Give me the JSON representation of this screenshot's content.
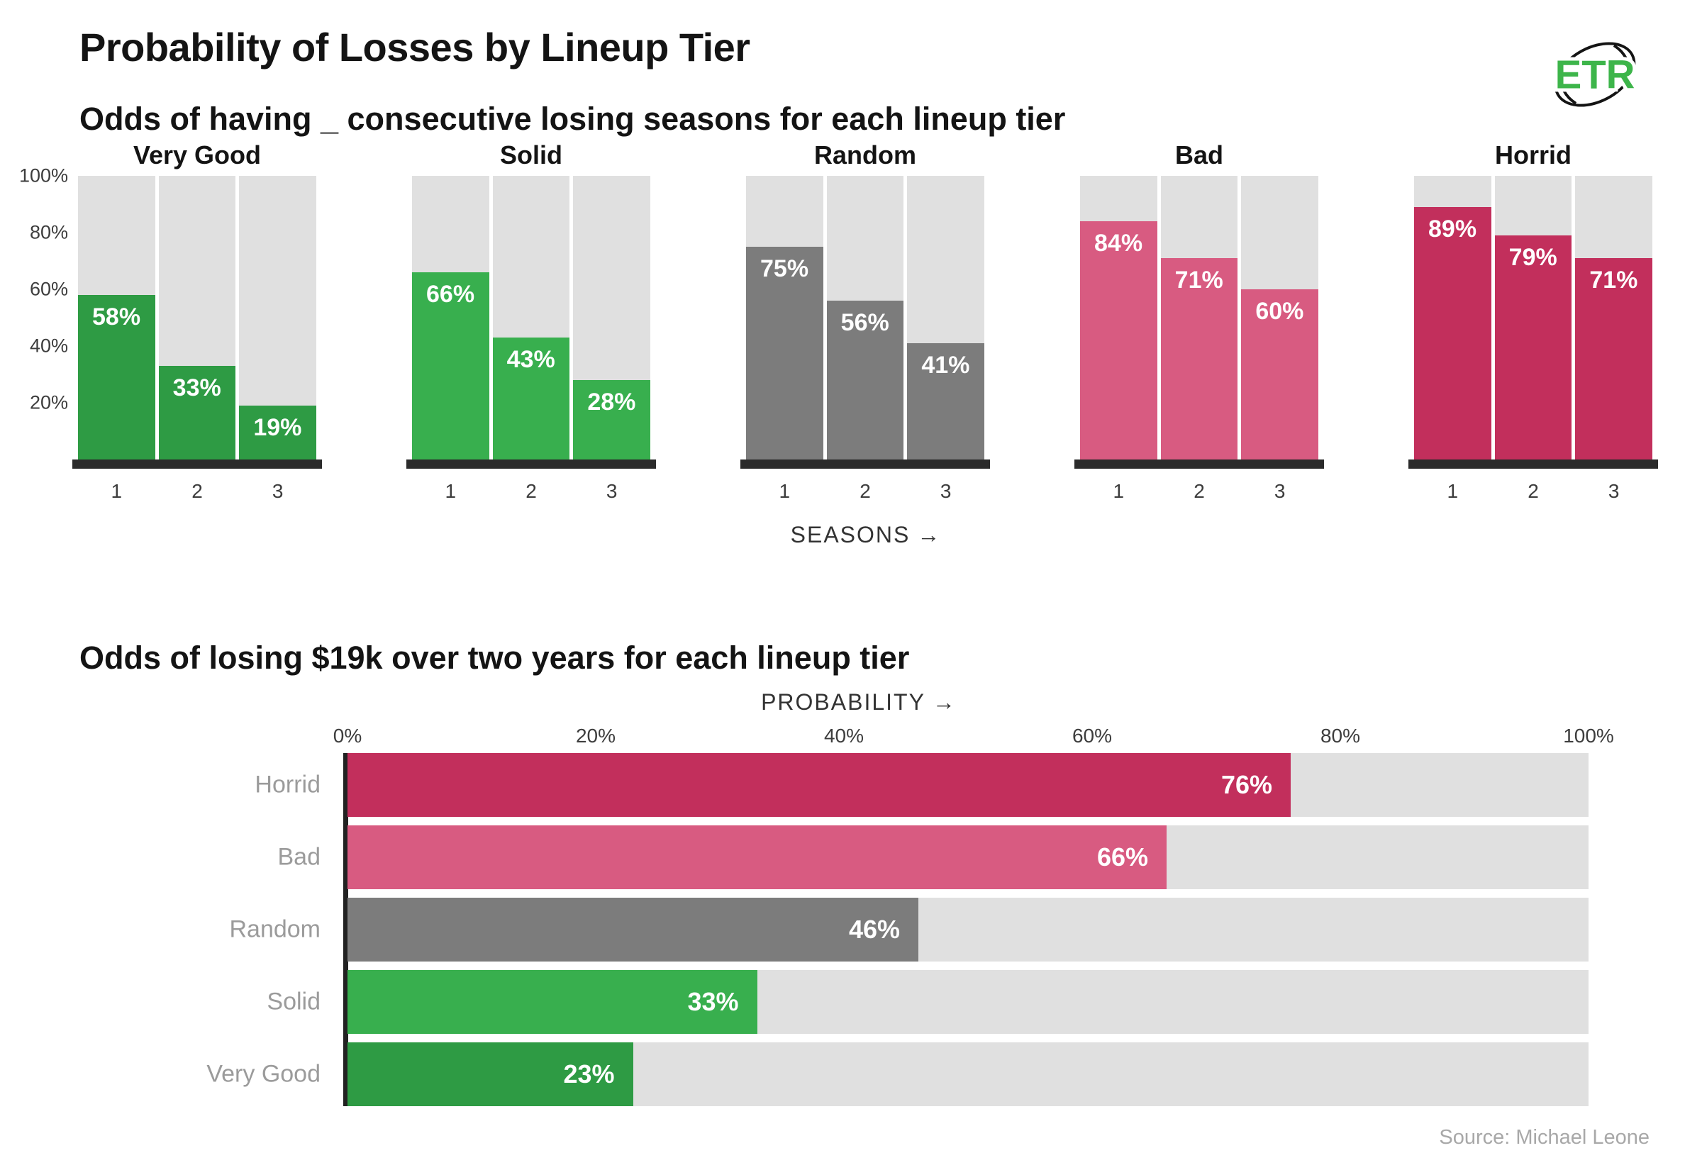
{
  "header": {
    "title": "Probability of Losses by Lineup Tier",
    "logo": {
      "text": "ETR",
      "color": "#3db54a",
      "icon": "football-icon"
    }
  },
  "sections": {
    "top": {
      "subtitle": "Odds of having _ consecutive losing seasons for each lineup tier",
      "axis_label": "SEASONS",
      "arrow": "→"
    },
    "bottom": {
      "subtitle": "Odds of losing $19k over two years for each lineup tier",
      "axis_label": "PROBABILITY",
      "arrow": "→"
    }
  },
  "footer": {
    "source": "Source: Michael Leone"
  },
  "palette": {
    "very_good": "#2e9b44",
    "solid": "#38af4e",
    "random": "#7c7c7c",
    "bad": "#d85b81",
    "horrid": "#c22f5c",
    "track": "#e0e0e0",
    "baseline": "#2b2b2b"
  },
  "chart_data": [
    {
      "type": "bar",
      "title": "Odds of having _ consecutive losing seasons for each lineup tier",
      "categories": [
        "1",
        "2",
        "3"
      ],
      "xlabel": "SEASONS →",
      "ylabel": "",
      "ylim": [
        0,
        100
      ],
      "yticks": [
        100,
        80,
        60,
        40,
        20
      ],
      "grid": false,
      "legend_position": "none",
      "series": [
        {
          "name": "Very Good",
          "color": "#2e9b44",
          "values": [
            58,
            33,
            19
          ]
        },
        {
          "name": "Solid",
          "color": "#38af4e",
          "values": [
            66,
            43,
            28
          ]
        },
        {
          "name": "Random",
          "color": "#7c7c7c",
          "values": [
            75,
            56,
            41
          ]
        },
        {
          "name": "Bad",
          "color": "#d85b81",
          "values": [
            84,
            71,
            60
          ]
        },
        {
          "name": "Horrid",
          "color": "#c22f5c",
          "values": [
            89,
            79,
            71
          ]
        }
      ]
    },
    {
      "type": "bar",
      "orientation": "horizontal",
      "title": "Odds of losing $19k over two years for each lineup tier",
      "xlabel": "PROBABILITY →",
      "categories": [
        "Horrid",
        "Bad",
        "Random",
        "Solid",
        "Very Good"
      ],
      "values": [
        76,
        66,
        46,
        33,
        23
      ],
      "colors": [
        "#c22f5c",
        "#d85b81",
        "#7c7c7c",
        "#38af4e",
        "#2e9b44"
      ],
      "xticks": [
        0,
        20,
        40,
        60,
        80,
        100
      ],
      "xlim": [
        0,
        100
      ],
      "grid": false
    }
  ]
}
